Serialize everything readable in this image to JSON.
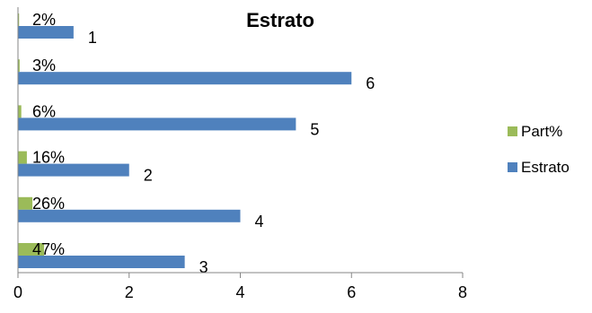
{
  "chart_data": {
    "type": "bar",
    "orientation": "horizontal",
    "title": "Estrato",
    "xlim": [
      0,
      8
    ],
    "x_ticks": [
      "0",
      "2",
      "4",
      "6",
      "8"
    ],
    "grid": false,
    "legend_position": "right",
    "categories": [
      "",
      "",
      "",
      "",
      "",
      ""
    ],
    "series": [
      {
        "name": "Part%",
        "color": "#9bbb59",
        "values": [
          0.02,
          0.03,
          0.06,
          0.16,
          0.26,
          0.47
        ],
        "data_labels": [
          "2%",
          "3%",
          "6%",
          "16%",
          "26%",
          "47%"
        ]
      },
      {
        "name": "Estrato",
        "color": "#4f81bd",
        "values": [
          1,
          6,
          5,
          2,
          4,
          3
        ],
        "data_labels": [
          "1",
          "6",
          "5",
          "2",
          "4",
          "3"
        ]
      }
    ]
  }
}
